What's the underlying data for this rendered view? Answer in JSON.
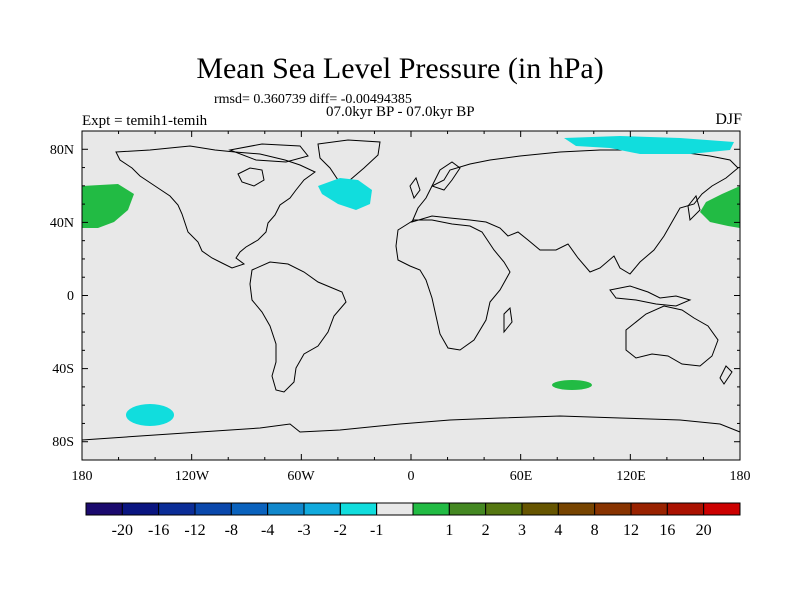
{
  "title": "Mean Sea Level Pressure (in hPa)",
  "stats": "rmsd= 0.360739 diff= -0.00494385",
  "periods": "07.0kyr BP - 07.0kyr BP",
  "experiment": "Expt = temih1-temih",
  "season": "DJF",
  "map": {
    "background_color": "#e8e8e8",
    "coastline_color": "#000000",
    "lon_ticks": [
      "180",
      "120W",
      "60W",
      "0",
      "60E",
      "120E",
      "180"
    ],
    "lat_ticks": [
      "80N",
      "40N",
      "0",
      "40S",
      "80S"
    ]
  },
  "anomaly_regions": [
    {
      "name": "north-pacific-west",
      "value_class": "1 to 2",
      "color": "#22bb44"
    },
    {
      "name": "north-pacific-east",
      "value_class": "1 to 2",
      "color": "#22bb44"
    },
    {
      "name": "south-indian-ocean",
      "value_class": "1 to 2",
      "color": "#22bb44"
    },
    {
      "name": "north-atlantic",
      "value_class": "-2 to -1",
      "color": "#11dddd"
    },
    {
      "name": "arctic-siberia",
      "value_class": "-2 to -1",
      "color": "#11dddd"
    },
    {
      "name": "south-pacific",
      "value_class": "-2 to -1",
      "color": "#11dddd"
    }
  ],
  "colorbar": {
    "colors": [
      "#1b0a6e",
      "#0a1580",
      "#0b2d97",
      "#0a48ac",
      "#0a62bd",
      "#1188cc",
      "#11aadd",
      "#11dddd",
      "#e8e8e8",
      "#22bb44",
      "#448822",
      "#557711",
      "#665500",
      "#774400",
      "#883300",
      "#992200",
      "#aa1100",
      "#cc0000"
    ],
    "labels": [
      "-20",
      "-16",
      "-12",
      "-8",
      "-4",
      "-3",
      "-2",
      "-1",
      "1",
      "2",
      "3",
      "4",
      "8",
      "12",
      "16",
      "20"
    ]
  }
}
